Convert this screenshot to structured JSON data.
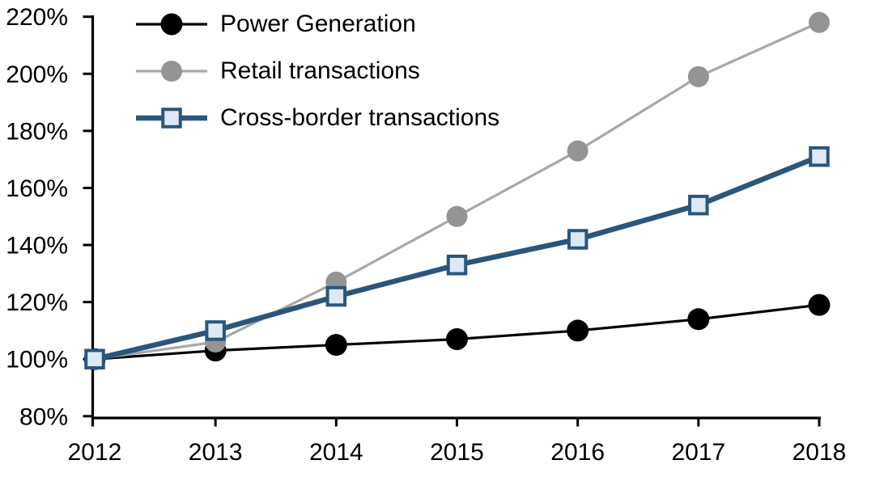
{
  "chart_data": {
    "type": "line",
    "title": "",
    "xlabel": "",
    "ylabel": "",
    "categories": [
      "2012",
      "2013",
      "2014",
      "2015",
      "2016",
      "2017",
      "2018"
    ],
    "series": [
      {
        "name": "Power Generation",
        "color": "#000000",
        "marker": "circle",
        "marker_fill": "#000000",
        "values": [
          100,
          103,
          105,
          107,
          110,
          114,
          119
        ]
      },
      {
        "name": "Retail transactions",
        "color": "#a8a8a8",
        "marker": "circle",
        "marker_fill": "#949494",
        "values": [
          100,
          106,
          127,
          150,
          173,
          199,
          218
        ]
      },
      {
        "name": "Cross-border transactions",
        "color": "#2a567c",
        "marker": "square",
        "marker_fill": "#dde9f5",
        "values": [
          100,
          110,
          122,
          133,
          142,
          154,
          171
        ]
      }
    ],
    "ylim": [
      80,
      220
    ],
    "ytick_step": 20,
    "ytick_labels": [
      "80%",
      "100%",
      "120%",
      "140%",
      "160%",
      "180%",
      "200%",
      "220%"
    ],
    "xtick_labels": [
      "2012",
      "2013",
      "2014",
      "2015",
      "2016",
      "2017",
      "2018"
    ],
    "legend_position": "top-left",
    "grid": false,
    "axis_color": "#000000",
    "background_color": "#ffffff",
    "tick_label_color": "#000000"
  }
}
